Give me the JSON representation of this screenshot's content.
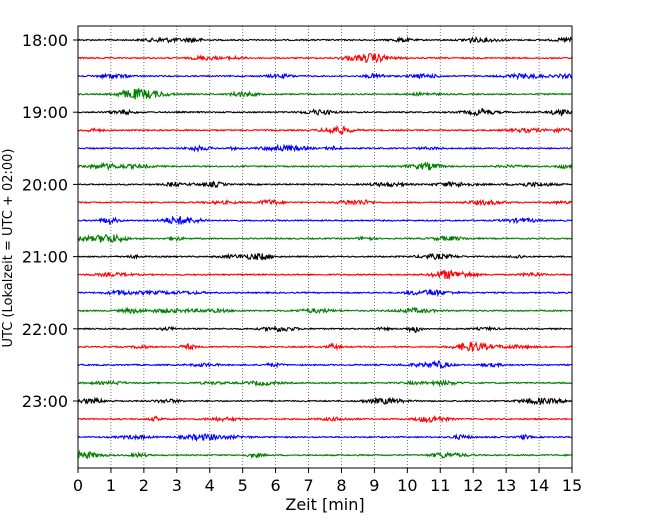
{
  "chart_data": {
    "type": "line",
    "title": "",
    "xlabel": "Zeit  [min]",
    "ylabel": "UTC (Lokalzeit = UTC + 02:00)",
    "xlim": [
      0,
      15
    ],
    "x_ticks": [
      "0",
      "1",
      "2",
      "3",
      "4",
      "5",
      "6",
      "7",
      "8",
      "9",
      "10",
      "11",
      "12",
      "13",
      "14",
      "15"
    ],
    "y_ticks": [
      "18:00",
      "19:00",
      "20:00",
      "21:00",
      "22:00",
      "23:00"
    ],
    "grid": "vertical dotted lines at each minute",
    "legend": "none",
    "trace_colors": [
      "#000000",
      "#ff0000",
      "#0000ff",
      "#008000"
    ],
    "series": [
      {
        "start": "18:00"
      },
      {
        "start": "18:15"
      },
      {
        "start": "18:30"
      },
      {
        "start": "18:45"
      },
      {
        "start": "19:00"
      },
      {
        "start": "19:15"
      },
      {
        "start": "19:30"
      },
      {
        "start": "19:45"
      },
      {
        "start": "20:00"
      },
      {
        "start": "20:15"
      },
      {
        "start": "20:30"
      },
      {
        "start": "20:45"
      },
      {
        "start": "21:00"
      },
      {
        "start": "21:15"
      },
      {
        "start": "21:30"
      },
      {
        "start": "21:45"
      },
      {
        "start": "22:00"
      },
      {
        "start": "22:15"
      },
      {
        "start": "22:30"
      },
      {
        "start": "22:45"
      },
      {
        "start": "23:00"
      },
      {
        "start": "23:15"
      },
      {
        "start": "23:30"
      },
      {
        "start": "23:45"
      }
    ]
  }
}
